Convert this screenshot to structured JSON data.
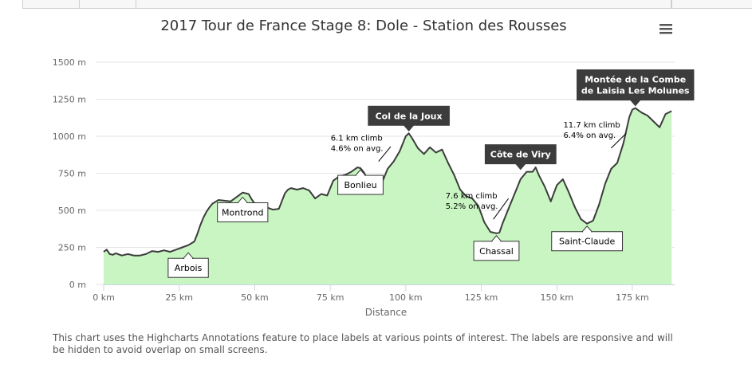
{
  "colors": {
    "area_fill": "#c8f5c1",
    "line": "#3c3c3c",
    "grid": "#e6e6e6",
    "axis_text": "#666666",
    "dark_label_bg": "#3c3c3c",
    "dark_label_text": "#ffffff",
    "light_label_bg": "#ffffff",
    "light_label_border": "#333333"
  },
  "menu": {
    "icon": "hamburger-menu-icon"
  },
  "caption": "This chart uses the Highcharts Annotations feature to place labels at various points of interest. The labels are responsive and will be hidden to avoid overlap on small screens.",
  "chart_data": {
    "type": "area",
    "title": "2017 Tour de France Stage 8: Dole - Station des Rousses",
    "xlabel": "Distance",
    "ylabel": "",
    "x_unit": "km",
    "y_unit": "m",
    "xlim": [
      0,
      189
    ],
    "ylim": [
      0,
      1500
    ],
    "x_ticks": [
      0,
      25,
      50,
      75,
      100,
      125,
      150,
      175
    ],
    "x_tick_labels": [
      "0 km",
      "25 km",
      "50 km",
      "75 km",
      "100 km",
      "125 km",
      "150 km",
      "175 km"
    ],
    "y_ticks": [
      0,
      250,
      500,
      750,
      1000,
      1250,
      1500
    ],
    "y_tick_labels": [
      "0 m",
      "250 m",
      "500 m",
      "750 m",
      "1000 m",
      "1250 m",
      "1500 m"
    ],
    "grid": true,
    "legend": false,
    "series": [
      {
        "x": [
          0,
          1,
          2,
          3,
          4,
          6,
          8,
          10,
          12,
          14,
          16,
          18,
          20,
          22,
          24,
          26,
          28,
          30,
          31,
          32,
          33,
          34,
          35,
          36,
          38,
          40,
          42,
          44,
          46,
          48,
          49,
          50,
          52,
          54,
          56,
          58,
          60,
          61,
          62,
          64,
          66,
          68,
          70,
          72,
          74,
          75,
          76,
          78,
          80,
          82,
          84,
          85,
          86,
          88,
          90,
          92,
          94,
          96,
          98,
          100,
          101,
          102,
          104,
          106,
          108,
          110,
          112,
          114,
          116,
          118,
          120,
          122,
          124,
          126,
          128,
          130,
          131,
          132,
          134,
          136,
          138,
          140,
          142,
          143,
          144,
          146,
          148,
          150,
          152,
          154,
          156,
          158,
          160,
          162,
          164,
          166,
          168,
          170,
          172,
          174,
          175,
          176,
          178,
          180,
          182,
          184,
          186,
          188
        ],
        "y": [
          220,
          235,
          205,
          200,
          210,
          195,
          205,
          195,
          195,
          205,
          225,
          220,
          230,
          220,
          235,
          250,
          265,
          290,
          340,
          400,
          450,
          490,
          520,
          545,
          570,
          565,
          560,
          590,
          620,
          610,
          575,
          545,
          510,
          520,
          505,
          510,
          615,
          640,
          650,
          640,
          650,
          635,
          580,
          610,
          600,
          650,
          700,
          730,
          740,
          760,
          790,
          785,
          760,
          690,
          730,
          680,
          780,
          830,
          900,
          1000,
          1020,
          990,
          920,
          880,
          925,
          890,
          910,
          820,
          740,
          640,
          595,
          580,
          530,
          420,
          355,
          345,
          350,
          410,
          510,
          610,
          710,
          760,
          760,
          790,
          740,
          660,
          560,
          670,
          710,
          620,
          520,
          440,
          410,
          430,
          540,
          680,
          780,
          820,
          950,
          1130,
          1180,
          1190,
          1160,
          1140,
          1100,
          1060,
          1150,
          1170
        ]
      }
    ],
    "annotations": [
      {
        "id": "arbois",
        "text": "Arbois",
        "x": 28,
        "y": 230,
        "style": "light",
        "placement": "below"
      },
      {
        "id": "montrond",
        "text": "Montrond",
        "x": 46,
        "y": 605,
        "style": "light",
        "placement": "below"
      },
      {
        "id": "bonlieu",
        "text": "Bonlieu",
        "x": 85,
        "y": 790,
        "style": "light",
        "placement": "below"
      },
      {
        "id": "col-de-la-joux",
        "text": "Col de la Joux",
        "x": 101,
        "y": 1020,
        "style": "dark",
        "placement": "above"
      },
      {
        "id": "chassal",
        "text": "Chassal",
        "x": 130,
        "y": 345,
        "style": "light",
        "placement": "below"
      },
      {
        "id": "cote-de-viry",
        "text": "Côte de Viry",
        "x": 138,
        "y": 760,
        "style": "dark",
        "placement": "above"
      },
      {
        "id": "saint-claude",
        "text": "Saint-Claude",
        "x": 160,
        "y": 410,
        "style": "light",
        "placement": "below"
      },
      {
        "id": "montee-combe",
        "text": [
          "Montée de la Combe",
          "de Laisia Les Molunes"
        ],
        "x": 176,
        "y": 1190,
        "style": "dark",
        "placement": "above"
      }
    ],
    "climb_notes": [
      {
        "id": "climb-joux",
        "lines": [
          "6.1 km climb",
          "4.6% on avg."
        ],
        "pointer_from_x": 91,
        "pointer_from_y": 830,
        "pointer_to_x": 95,
        "pointer_to_y": 930
      },
      {
        "id": "climb-viry",
        "lines": [
          "7.6 km climb",
          "5.2% on avg."
        ],
        "pointer_from_x": 129,
        "pointer_from_y": 440,
        "pointer_to_x": 134,
        "pointer_to_y": 580
      },
      {
        "id": "climb-combe",
        "lines": [
          "11.7 km climb",
          "6.4% on avg."
        ],
        "pointer_from_x": 168,
        "pointer_from_y": 920,
        "pointer_to_x": 173,
        "pointer_to_y": 1020
      }
    ]
  }
}
